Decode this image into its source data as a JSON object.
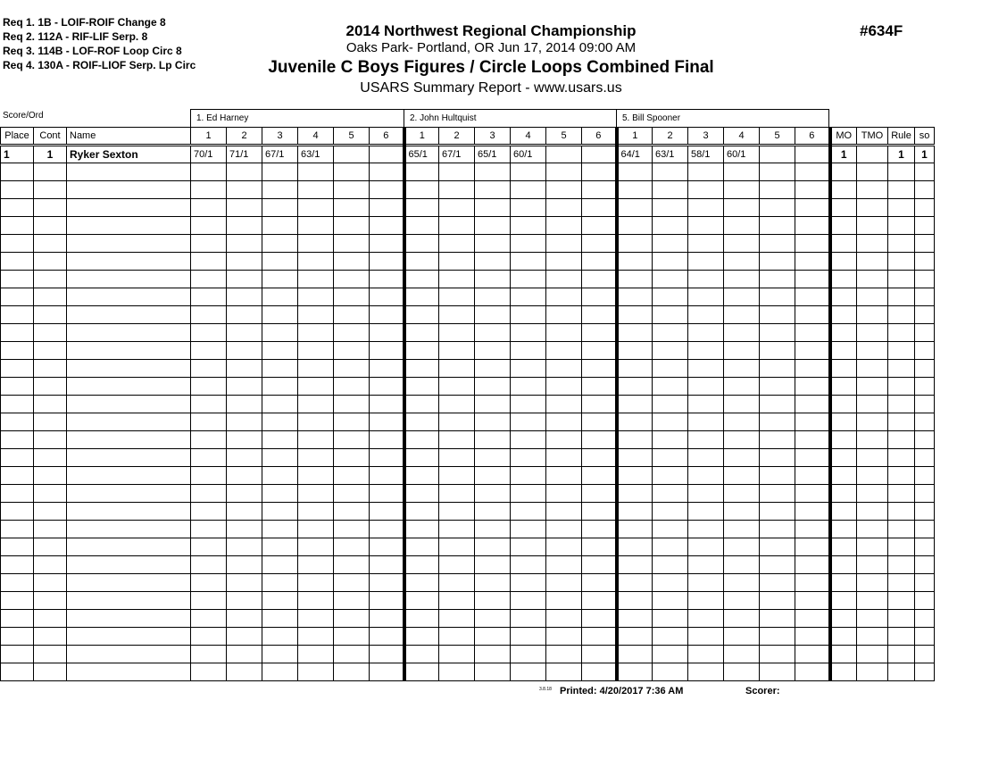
{
  "requirements": [
    "Req  1.  1B - LOIF-ROIF Change 8",
    "Req  2.  112A - RIF-LIF Serp. 8",
    "Req  3.  114B - LOF-ROF Loop Circ 8",
    "Req  4.  130A - ROIF-LIOF Serp. Lp Circ"
  ],
  "header": {
    "competition": "2014 Northwest Regional Championship",
    "location": "Oaks Park- Portland, OR  Jun 17, 2014  09:00 AM",
    "event": "Juvenile C Boys Figures / Circle Loops Combined Final",
    "report": "USARS Summary Report - www.usars.us",
    "event_number": "#634F"
  },
  "score_ord_label": "Score/Ord",
  "judges": [
    "1.  Ed Harney",
    "2.  John Hultquist",
    "5.  Bill Spooner"
  ],
  "columns": {
    "place": "Place",
    "cont": "Cont",
    "name": "Name",
    "figures": [
      "1",
      "2",
      "3",
      "4",
      "5",
      "6"
    ],
    "mo": "MO",
    "tmo": "TMO",
    "rule": "Rule",
    "so": "so"
  },
  "rows": [
    {
      "place": "1",
      "cont": "1",
      "name": "Ryker Sexton",
      "scores": [
        [
          "70/1",
          "71/1",
          "67/1",
          "63/1",
          "",
          ""
        ],
        [
          "65/1",
          "67/1",
          "65/1",
          "60/1",
          "",
          ""
        ],
        [
          "64/1",
          "63/1",
          "58/1",
          "60/1",
          "",
          ""
        ]
      ],
      "mo": "1",
      "tmo": "",
      "rule": "1",
      "so": "1"
    }
  ],
  "footer": {
    "version": "3.8.18",
    "printed": "Printed:  4/20/2017  7:36 AM",
    "scorer": "Scorer:"
  }
}
